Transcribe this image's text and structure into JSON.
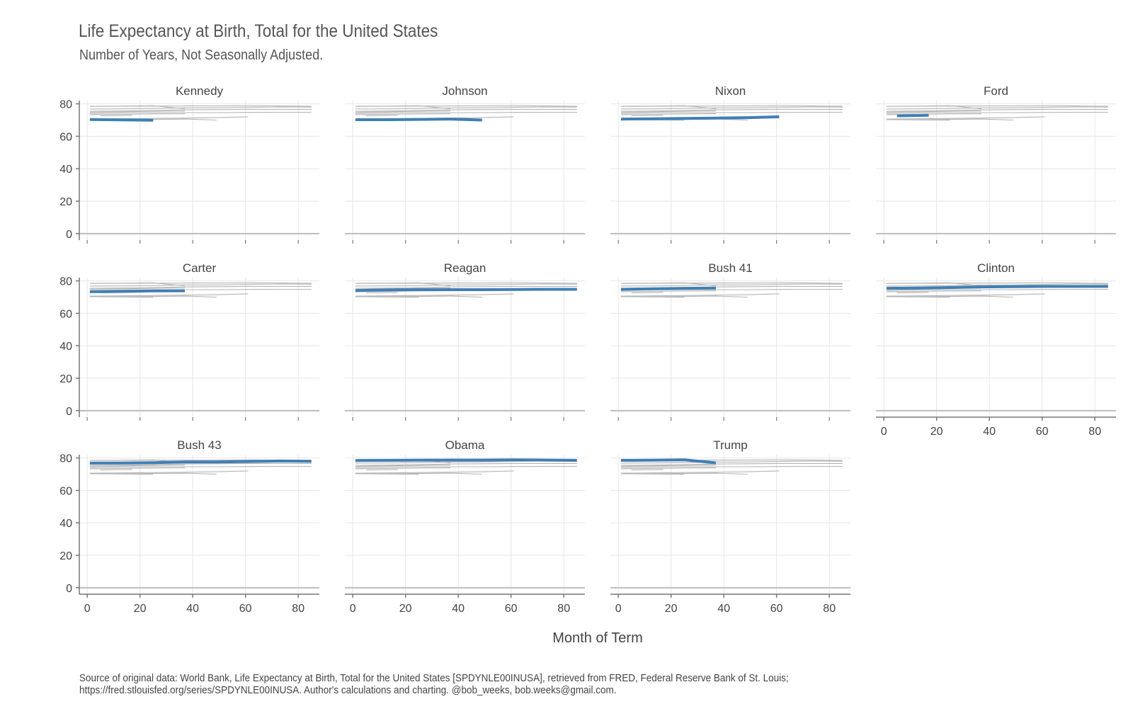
{
  "chart_data": {
    "type": "line",
    "title": "Life Expectancy at Birth, Total for the United States",
    "subtitle": "Number of Years, Not Seasonally Adjusted.",
    "xlabel": "Month of Term",
    "ylabel": "",
    "xlim": [
      -3,
      88
    ],
    "ylim": [
      -4,
      82
    ],
    "x_ticks": [
      0,
      20,
      40,
      60,
      80
    ],
    "y_ticks": [
      0,
      20,
      40,
      60,
      80
    ],
    "grid": true,
    "highlight_color": "#3f7fb4",
    "background_color": "#b4b4b4",
    "caption": [
      "Source of original data: World Bank, Life Expectancy at Birth, Total for the United States [SPDYNLE00INUSA], retrieved from FRED, Federal Reserve Bank of St. Louis;",
      "https://fred.stlouisfed.org/series/SPDYNLE00INUSA. Author's calculations and charting. @bob_weeks, bob.weeks@gmail.com."
    ],
    "series": [
      {
        "name": "Kennedy",
        "x": [
          1,
          13,
          25
        ],
        "y": [
          70.3,
          70.1,
          69.9
        ]
      },
      {
        "name": "Johnson",
        "x": [
          1,
          13,
          25,
          37,
          49
        ],
        "y": [
          70.2,
          70.2,
          70.4,
          70.6,
          70.0
        ]
      },
      {
        "name": "Nixon",
        "x": [
          1,
          13,
          25,
          37,
          49,
          61
        ],
        "y": [
          70.6,
          70.8,
          71.0,
          71.2,
          71.5,
          72.0
        ]
      },
      {
        "name": "Ford",
        "x": [
          5,
          17
        ],
        "y": [
          72.6,
          72.9
        ]
      },
      {
        "name": "Carter",
        "x": [
          1,
          13,
          25,
          37
        ],
        "y": [
          73.3,
          73.5,
          73.8,
          73.9
        ]
      },
      {
        "name": "Reagan",
        "x": [
          1,
          13,
          25,
          37,
          49,
          61,
          73,
          85
        ],
        "y": [
          74.0,
          74.4,
          74.6,
          74.6,
          74.6,
          74.7,
          74.8,
          74.8
        ]
      },
      {
        "name": "Bush 41",
        "x": [
          1,
          13,
          25,
          37
        ],
        "y": [
          74.8,
          75.1,
          75.4,
          75.6
        ]
      },
      {
        "name": "Clinton",
        "x": [
          1,
          13,
          25,
          37,
          49,
          61,
          73,
          85
        ],
        "y": [
          75.4,
          75.6,
          75.9,
          76.3,
          76.4,
          76.6,
          76.6,
          76.6
        ]
      },
      {
        "name": "Bush 43",
        "x": [
          1,
          13,
          25,
          37,
          49,
          61,
          73,
          85
        ],
        "y": [
          76.8,
          76.9,
          77.1,
          77.5,
          77.5,
          77.8,
          78.1,
          78.0
        ]
      },
      {
        "name": "Obama",
        "x": [
          1,
          13,
          25,
          37,
          49,
          61,
          73,
          85
        ],
        "y": [
          78.4,
          78.5,
          78.6,
          78.7,
          78.7,
          78.8,
          78.7,
          78.5
        ]
      },
      {
        "name": "Trump",
        "x": [
          1,
          13,
          25,
          37
        ],
        "y": [
          78.5,
          78.6,
          78.8,
          77.0
        ]
      }
    ]
  }
}
